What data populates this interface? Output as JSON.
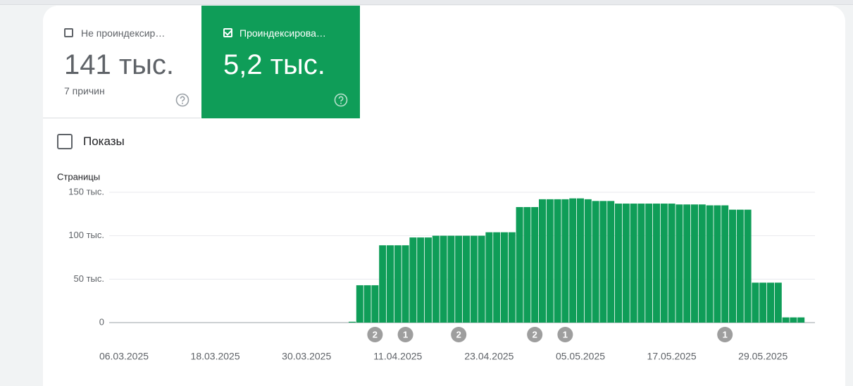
{
  "cards": [
    {
      "label": "Не проиндексир…",
      "value": "141 тыс.",
      "note": "7 причин",
      "checked": false
    },
    {
      "label": "Проиндексирова…",
      "value": "5,2 тыс.",
      "checked": true
    }
  ],
  "impressions_toggle": {
    "label": "Показы",
    "checked": false
  },
  "chart_data": {
    "type": "bar",
    "y_label": "Страницы",
    "categories": [
      "06.03.2025",
      null,
      null,
      null,
      null,
      null,
      null,
      null,
      null,
      null,
      null,
      null,
      "18.03.2025",
      null,
      null,
      null,
      null,
      null,
      null,
      null,
      null,
      null,
      null,
      null,
      "30.03.2025",
      null,
      null,
      null,
      null,
      null,
      null,
      null,
      null,
      null,
      null,
      null,
      "11.04.2025",
      null,
      null,
      null,
      null,
      null,
      null,
      null,
      null,
      null,
      null,
      null,
      "23.04.2025",
      null,
      null,
      null,
      null,
      null,
      null,
      null,
      null,
      null,
      null,
      null,
      "05.05.2025",
      null,
      null,
      null,
      null,
      null,
      null,
      null,
      null,
      null,
      null,
      null,
      "17.05.2025",
      null,
      null,
      null,
      null,
      null,
      null,
      null,
      null,
      null,
      null,
      null,
      "29.05.2025",
      null,
      null,
      null,
      null,
      null
    ],
    "values": [
      0,
      0,
      0,
      0,
      0,
      0,
      0,
      0,
      0,
      0,
      0,
      0,
      0,
      0,
      0,
      0,
      0,
      0,
      0,
      0,
      0,
      0,
      0,
      0,
      0,
      0,
      0,
      0,
      0,
      0,
      1,
      43,
      43,
      43,
      89,
      89,
      89,
      89,
      98,
      98,
      98,
      100,
      100,
      100,
      100,
      100,
      100,
      100,
      104,
      104,
      104,
      104,
      133,
      133,
      133,
      142,
      142,
      142,
      142,
      143,
      143,
      142,
      140,
      140,
      140,
      137,
      137,
      137,
      137,
      137,
      137,
      137,
      137,
      136,
      136,
      136,
      136,
      135,
      135,
      135,
      130,
      130,
      130,
      46,
      46,
      46,
      46,
      6,
      6,
      6
    ],
    "events": [
      null,
      null,
      null,
      null,
      null,
      null,
      null,
      null,
      null,
      null,
      null,
      null,
      null,
      null,
      null,
      null,
      null,
      null,
      null,
      null,
      null,
      null,
      null,
      null,
      null,
      null,
      null,
      null,
      null,
      null,
      null,
      null,
      null,
      2,
      null,
      null,
      null,
      1,
      null,
      null,
      null,
      null,
      null,
      null,
      2,
      null,
      null,
      null,
      null,
      null,
      null,
      null,
      null,
      null,
      2,
      null,
      null,
      null,
      1,
      null,
      null,
      null,
      null,
      null,
      null,
      null,
      null,
      null,
      null,
      null,
      null,
      null,
      null,
      null,
      null,
      null,
      null,
      null,
      null,
      1,
      null,
      null,
      null,
      null,
      null,
      null,
      null,
      null,
      null,
      null
    ],
    "color": "#0f9d58",
    "ylim": [
      0,
      150
    ],
    "yticks": [
      0,
      {
        "value": 50,
        "label": "50 тыс."
      },
      {
        "value": 100,
        "label": "100 тыс."
      },
      {
        "value": 150,
        "label": "150 тыс."
      }
    ],
    "grid": true
  }
}
